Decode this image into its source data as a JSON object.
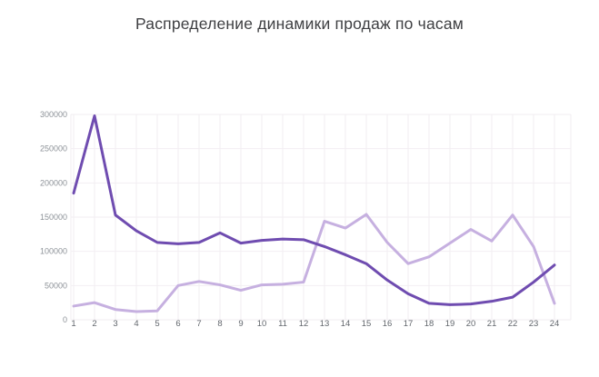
{
  "chart": {
    "title": "Распределение динамики продаж по часам"
  },
  "colors": {
    "background": "#ffffff",
    "grid": "#f2eef2",
    "title_text": "#3f4043",
    "y_tick_text": "#8d9298",
    "x_tick_text": "#62676d",
    "series_dark_purple": "#6f4cb0",
    "series_light_purple": "#c6b0e0"
  },
  "chart_data": {
    "type": "line",
    "title": "Распределение динамики продаж по часам",
    "xlabel": "",
    "ylabel": "",
    "x": [
      1,
      2,
      3,
      4,
      5,
      6,
      7,
      8,
      9,
      10,
      11,
      12,
      13,
      14,
      15,
      16,
      17,
      18,
      19,
      20,
      21,
      22,
      23,
      24
    ],
    "x_tick_labels": [
      "1",
      "2",
      "3",
      "4",
      "5",
      "6",
      "7",
      "8",
      "9",
      "10",
      "11",
      "12",
      "13",
      "14",
      "15",
      "16",
      "17",
      "18",
      "19",
      "20",
      "21",
      "22",
      "23",
      "24"
    ],
    "ylim": [
      0,
      300000
    ],
    "yticks": [
      0,
      50000,
      100000,
      150000,
      200000,
      250000,
      300000
    ],
    "ytick_labels": [
      "0",
      "50000",
      "100000",
      "150000",
      "200000",
      "250000",
      "300000"
    ],
    "grid": true,
    "legend": "none",
    "series": [
      {
        "name": "series-1-dark-purple",
        "color": "#6f4cb0",
        "values": [
          185000,
          298000,
          153000,
          130000,
          113000,
          111000,
          113000,
          127000,
          112000,
          116000,
          118000,
          117000,
          107000,
          95000,
          82000,
          58000,
          38000,
          24000,
          22000,
          23000,
          27000,
          33000,
          55000,
          80000
        ]
      },
      {
        "name": "series-2-light-purple",
        "color": "#c6b0e0",
        "values": [
          20000,
          25000,
          15000,
          12000,
          13000,
          50000,
          56000,
          51000,
          43000,
          51000,
          52000,
          55000,
          144000,
          134000,
          154000,
          113000,
          82000,
          92000,
          112000,
          132000,
          115000,
          153000,
          107000,
          24000
        ]
      }
    ]
  }
}
